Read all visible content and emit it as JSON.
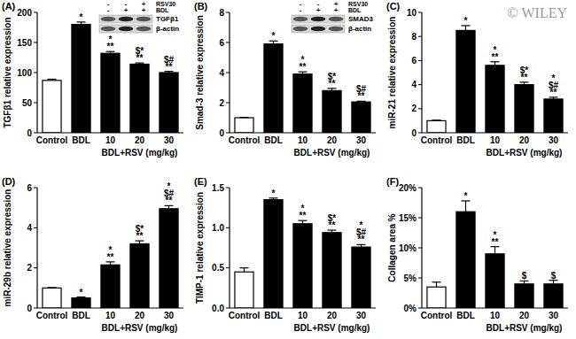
{
  "watermark": "© WILEY",
  "chart_data": [
    {
      "type": "bar",
      "title": "(A)",
      "ylabel": "TGFβ1 relative expression",
      "xlabel": "BDL+RSV (mg/kg)",
      "categories": [
        "Control",
        "BDL",
        "10",
        "20",
        "30"
      ],
      "values": [
        87,
        180,
        132,
        114,
        100
      ],
      "errors": [
        2,
        4,
        3,
        2,
        2
      ],
      "colors": [
        "#ffffff",
        "#000000",
        "#000000",
        "#000000",
        "#000000"
      ],
      "ylim": [
        0,
        200
      ],
      "yticks": [
        0,
        50,
        100,
        150,
        200
      ],
      "annotations": [
        null,
        [
          "*"
        ],
        [
          "*",
          "**"
        ],
        [
          "$*",
          "**"
        ],
        [
          "$#",
          "**"
        ]
      ],
      "inset": {
        "rows": [
          {
            "label": "RSV30",
            "signs": [
              "-",
              "-",
              "+"
            ]
          },
          {
            "label": "BDL",
            "signs": [
              "-",
              "+",
              "+"
            ]
          }
        ],
        "bands": [
          "TGFβ1",
          "β-actin"
        ]
      }
    },
    {
      "type": "bar",
      "title": "(B)",
      "ylabel": "Smad-3 relative expression",
      "xlabel": "BDL+RSV (mg/kg)",
      "categories": [
        "Control",
        "BDL",
        "10",
        "20",
        "30"
      ],
      "values": [
        1,
        5.9,
        3.9,
        2.8,
        2.05
      ],
      "errors": [
        0.02,
        0.2,
        0.15,
        0.15,
        0.05
      ],
      "colors": [
        "#ffffff",
        "#000000",
        "#000000",
        "#000000",
        "#000000"
      ],
      "ylim": [
        0,
        8
      ],
      "yticks": [
        0,
        2,
        4,
        6,
        8
      ],
      "annotations": [
        null,
        [
          "*"
        ],
        [
          "*",
          "**"
        ],
        [
          "$*",
          "**"
        ],
        [
          "$#",
          "**"
        ]
      ],
      "inset": {
        "rows": [
          {
            "label": "RSV30",
            "signs": [
              "-",
              "-",
              "+"
            ]
          },
          {
            "label": "BDL",
            "signs": [
              "-",
              "+",
              "+"
            ]
          }
        ],
        "bands": [
          "SMAD3",
          "β-actin"
        ]
      }
    },
    {
      "type": "bar",
      "title": "(C)",
      "ylabel": "miR-21 relative expression",
      "xlabel": "BDL+RSV (mg/kg)",
      "categories": [
        "Control",
        "BDL",
        "10",
        "20",
        "30"
      ],
      "values": [
        1,
        8.5,
        5.6,
        4.0,
        2.8
      ],
      "errors": [
        0.05,
        0.4,
        0.3,
        0.2,
        0.15
      ],
      "colors": [
        "#ffffff",
        "#000000",
        "#000000",
        "#000000",
        "#000000"
      ],
      "ylim": [
        0,
        10
      ],
      "yticks": [
        0,
        2,
        4,
        6,
        8,
        10
      ],
      "annotations": [
        null,
        [
          "*"
        ],
        [
          "*",
          "**"
        ],
        [
          "$*",
          "**"
        ],
        [
          "*",
          "$#",
          "**"
        ]
      ]
    },
    {
      "type": "bar",
      "title": "(D)",
      "ylabel": "miR-29b relative expression",
      "xlabel": "BDL+RSV (mg/kg)",
      "categories": [
        "Control",
        "BDL",
        "10",
        "20",
        "30"
      ],
      "values": [
        1,
        0.5,
        2.15,
        3.2,
        4.95
      ],
      "errors": [
        0.02,
        0.05,
        0.15,
        0.15,
        0.15
      ],
      "colors": [
        "#ffffff",
        "#000000",
        "#000000",
        "#000000",
        "#000000"
      ],
      "ylim": [
        0,
        6
      ],
      "yticks": [
        0,
        2,
        4,
        6
      ],
      "annotations": [
        null,
        [
          "*"
        ],
        [
          "*",
          "**"
        ],
        [
          "$*",
          "**"
        ],
        [
          "*",
          "$#",
          "**"
        ]
      ]
    },
    {
      "type": "bar",
      "title": "(E)",
      "ylabel": "TIMP-1 relative expression",
      "xlabel": "BDL+RSV (mg/kg)",
      "categories": [
        "Control",
        "BDL",
        "10",
        "20",
        "30"
      ],
      "values": [
        0.45,
        1.35,
        1.05,
        0.94,
        0.76
      ],
      "errors": [
        0.05,
        0.02,
        0.04,
        0.03,
        0.03
      ],
      "colors": [
        "#ffffff",
        "#000000",
        "#000000",
        "#000000",
        "#000000"
      ],
      "ylim": [
        0,
        1.5
      ],
      "yticks": [
        {
          "value": 0,
          "label": "0.0"
        },
        {
          "value": 0.5,
          "label": "0.5"
        },
        {
          "value": 1,
          "label": "1.0"
        },
        {
          "value": 1.5,
          "label": "1.5"
        }
      ],
      "annotations": [
        null,
        [
          "*"
        ],
        [
          "*",
          "**"
        ],
        [
          "$*",
          "**"
        ],
        [
          "*",
          "$#",
          "**"
        ]
      ]
    },
    {
      "type": "bar",
      "title": "(F)",
      "ylabel": "Collagen area %",
      "xlabel": "BDL+RSV (mg/kg)",
      "categories": [
        "Control",
        "BDL",
        "10",
        "20",
        "30"
      ],
      "values": [
        3.5,
        16,
        9,
        4,
        4
      ],
      "errors": [
        0.8,
        1.8,
        1.2,
        0.5,
        0.6
      ],
      "colors": [
        "#ffffff",
        "#000000",
        "#000000",
        "#000000",
        "#000000"
      ],
      "ylim": [
        0,
        20
      ],
      "yticks": [
        {
          "value": 0,
          "label": "0%"
        },
        {
          "value": 5,
          "label": "5%"
        },
        {
          "value": 10,
          "label": "10%"
        },
        {
          "value": 15,
          "label": "15%"
        },
        {
          "value": 20,
          "label": "20%"
        }
      ],
      "annotations": [
        null,
        [
          "*"
        ],
        [
          "*",
          "**"
        ],
        [
          "$"
        ],
        [
          "$"
        ]
      ]
    }
  ]
}
